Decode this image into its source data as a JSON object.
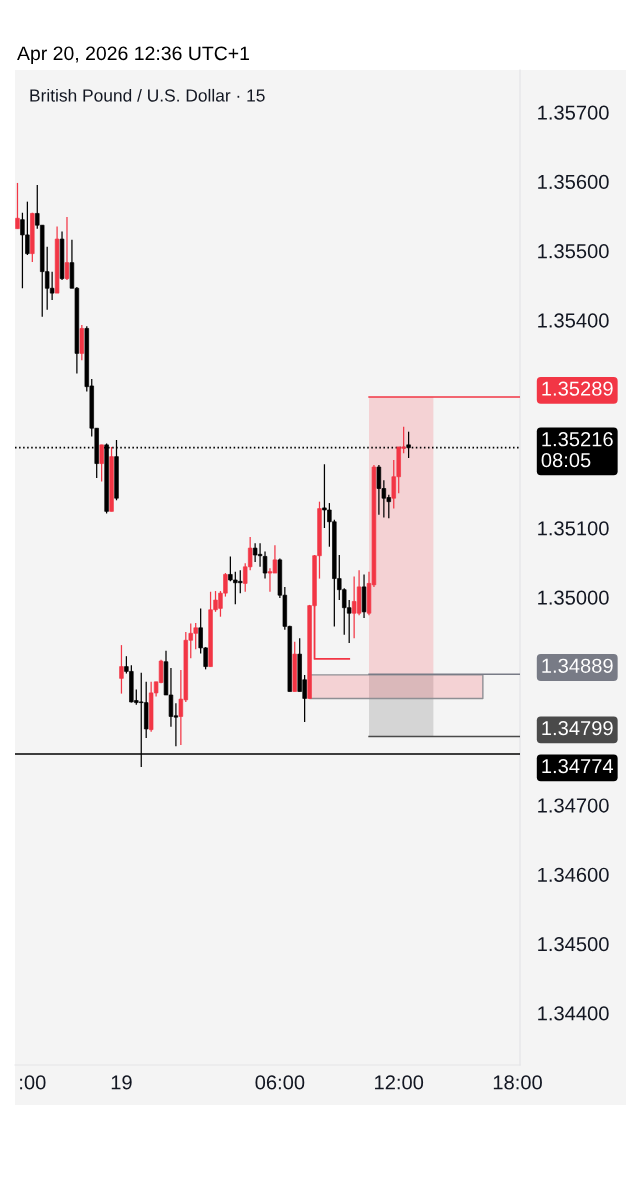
{
  "chart_data": {
    "type": "candlestick",
    "title": "British Pound / U.S. Dollar · 15",
    "annotations": [
      "Apr 20, 2026 12:36 UTC+1"
    ],
    "categories": [
      null,
      null,
      null,
      ":00",
      null,
      null,
      null,
      null,
      null,
      null,
      null,
      null,
      null,
      null,
      null,
      null,
      null,
      null,
      null,
      null,
      null,
      "19",
      null,
      null,
      null,
      null,
      null,
      null,
      null,
      null,
      null,
      null,
      null,
      null,
      null,
      null,
      null,
      null,
      null,
      null,
      null,
      null,
      null,
      null,
      null,
      null,
      null,
      null,
      null,
      null,
      null,
      null,
      null,
      "06:00",
      null,
      null,
      null,
      null,
      null,
      null,
      null,
      null,
      null,
      null,
      null,
      null,
      null,
      null,
      null,
      null,
      null,
      null,
      null,
      null,
      null,
      null,
      null,
      "12:00",
      null,
      null,
      null,
      null,
      null,
      null,
      null,
      null,
      null,
      null,
      null,
      null,
      null,
      null,
      null,
      null,
      null,
      null,
      null,
      null,
      null,
      null,
      null,
      "18:00"
    ],
    "ohlc": [
      [
        1.35532,
        1.35598,
        1.35532,
        1.35547
      ],
      [
        1.35545,
        1.35555,
        1.35446,
        1.35523
      ],
      [
        1.35523,
        1.35571,
        1.35494,
        1.35496
      ],
      [
        1.35496,
        1.35555,
        1.35484,
        1.35554
      ],
      [
        1.35554,
        1.35595,
        1.35532,
        1.35537
      ],
      [
        1.35537,
        1.35537,
        1.35405,
        1.3547
      ],
      [
        1.3547,
        1.35506,
        1.35415,
        1.35446
      ],
      [
        1.35446,
        1.3547,
        1.35429,
        1.35439
      ],
      [
        1.35439,
        1.35535,
        1.35439,
        1.35517
      ],
      [
        1.35517,
        1.35528,
        1.35458,
        1.3546
      ],
      [
        1.3546,
        1.35549,
        1.35458,
        1.35483
      ],
      [
        1.35483,
        1.35516,
        1.35446,
        1.35446
      ],
      [
        1.35446,
        1.35448,
        1.35323,
        1.35352
      ],
      [
        1.35352,
        1.35393,
        1.35342,
        1.35388
      ],
      [
        1.35388,
        1.35391,
        1.35297,
        1.35304
      ],
      [
        1.35305,
        1.35315,
        1.35232,
        1.35244
      ],
      [
        1.35244,
        1.35244,
        1.35172,
        1.35193
      ],
      [
        1.35193,
        1.3522,
        1.35167,
        1.3522
      ],
      [
        1.3522,
        1.35222,
        1.35121,
        1.35124
      ],
      [
        1.35124,
        1.35217,
        1.35124,
        1.35203
      ],
      [
        1.35203,
        1.35227,
        1.3514,
        1.35143
      ],
      [
        1.34883,
        1.34931,
        1.34861,
        1.349
      ],
      [
        1.349,
        1.34915,
        1.3489,
        1.34893
      ],
      [
        1.34893,
        1.34902,
        1.34848,
        1.34849
      ],
      [
        1.34851,
        1.34867,
        1.34845,
        1.34848
      ],
      [
        1.34849,
        1.34891,
        1.34755,
        1.34848
      ],
      [
        1.34848,
        1.34878,
        1.34797,
        1.3481
      ],
      [
        1.34809,
        1.34878,
        1.34806,
        1.34862
      ],
      [
        1.34862,
        1.34878,
        1.34857,
        1.34878
      ],
      [
        1.34877,
        1.3491,
        1.34876,
        1.34908
      ],
      [
        1.34907,
        1.34923,
        1.34859,
        1.34859
      ],
      [
        1.34859,
        1.34898,
        1.34813,
        1.34828
      ],
      [
        1.34829,
        1.34847,
        1.34785,
        1.34827
      ],
      [
        1.34828,
        1.34895,
        1.34787,
        1.34853
      ],
      [
        1.34852,
        1.3495,
        1.34849,
        1.34938
      ],
      [
        1.34938,
        1.34962,
        1.34912,
        1.34948
      ],
      [
        1.34948,
        1.34963,
        1.34925,
        1.34956
      ],
      [
        1.34956,
        1.34984,
        1.34919,
        1.34927
      ],
      [
        1.34927,
        1.34928,
        1.34896,
        1.349
      ],
      [
        1.349,
        1.35008,
        1.349,
        1.34982
      ],
      [
        1.34982,
        1.35009,
        1.34979,
        1.34996
      ],
      [
        1.34984,
        1.35009,
        1.34972,
        1.35006
      ],
      [
        1.35006,
        1.35035,
        1.35001,
        1.35033
      ],
      [
        1.35033,
        1.35059,
        1.35023,
        1.35025
      ],
      [
        1.35025,
        1.35037,
        1.3499,
        1.35021
      ],
      [
        1.35023,
        1.35039,
        1.35006,
        1.35021
      ],
      [
        1.3502,
        1.35049,
        1.35008,
        1.35044
      ],
      [
        1.35044,
        1.35087,
        1.35039,
        1.35071
      ],
      [
        1.35071,
        1.35078,
        1.35051,
        1.35061
      ],
      [
        1.35062,
        1.35078,
        1.35044,
        1.3506
      ],
      [
        1.35059,
        1.35066,
        1.35027,
        1.35035
      ],
      [
        1.35035,
        1.35042,
        1.35008,
        1.35037
      ],
      [
        1.35035,
        1.35075,
        1.35035,
        1.35054
      ],
      [
        1.35054,
        1.35056,
        1.34999,
        1.35003
      ],
      [
        1.35003,
        1.35015,
        1.34953,
        1.34958
      ],
      [
        1.34958,
        1.34959,
        1.34864,
        1.34864
      ],
      [
        1.34864,
        1.34936,
        1.34864,
        1.34918
      ],
      [
        1.34918,
        1.34941,
        1.34864,
        1.34864
      ],
      [
        1.34881,
        1.34888,
        1.3482,
        1.34854
      ],
      [
        1.34854,
        1.34989,
        1.34854,
        1.34988
      ],
      [
        1.34988,
        1.35061,
        1.34986,
        1.3506
      ],
      [
        1.3506,
        1.35138,
        1.35027,
        1.35128
      ],
      [
        1.35129,
        1.35192,
        1.351,
        1.35126
      ],
      [
        1.35126,
        1.35136,
        1.35073,
        1.35109
      ],
      [
        1.35109,
        1.35112,
        1.34958,
        1.35027
      ],
      [
        1.35027,
        1.35061,
        1.34996,
        1.35011
      ],
      [
        1.35011,
        1.35013,
        1.34946,
        1.34985
      ],
      [
        1.34985,
        1.34996,
        1.34934,
        1.34977
      ],
      [
        1.34977,
        1.3503,
        1.34941,
        1.34994
      ],
      [
        1.34977,
        1.35039,
        1.34974,
        1.35015
      ],
      [
        1.35015,
        1.35033,
        1.3497,
        1.34979
      ],
      [
        1.34977,
        1.35037,
        1.34974,
        1.3502
      ],
      [
        1.35018,
        1.35191,
        1.35015,
        1.35188
      ],
      [
        1.35188,
        1.35191,
        1.35119,
        1.35157
      ],
      [
        1.35157,
        1.35169,
        1.35115,
        1.35143
      ],
      [
        1.35144,
        1.35148,
        1.35114,
        1.35138
      ],
      [
        1.35143,
        1.35198,
        1.35128,
        1.35174
      ],
      [
        1.35174,
        1.35217,
        1.3515,
        1.35217
      ],
      [
        1.35215,
        1.35246,
        1.35208,
        1.35217
      ],
      [
        1.3522,
        1.35239,
        1.35201,
        1.35216
      ],
      null,
      null,
      null,
      null,
      null,
      null,
      null,
      null,
      null,
      null,
      null,
      null,
      null,
      null,
      null,
      null,
      null,
      null,
      null,
      null,
      null,
      null
    ],
    "colors": [
      "#f23645",
      "#000000",
      "#000000",
      "#f23645",
      "#000000",
      "#000000",
      "#000000",
      "#000000",
      "#f23645",
      "#000000",
      "#f23645",
      "#000000",
      "#000000",
      "#f23645",
      "#000000",
      "#000000",
      "#000000",
      "#f23645",
      "#000000",
      "#f23645",
      "#000000",
      "#f23645",
      "#000000",
      "#000000",
      "#000000",
      "#000000",
      "#000000",
      "#f23645",
      "#f23645",
      "#f23645",
      "#000000",
      "#000000",
      "#000000",
      "#f23645",
      "#f23645",
      "#f23645",
      "#f23645",
      "#000000",
      "#000000",
      "#f23645",
      "#f23645",
      "#f23645",
      "#f23645",
      "#000000",
      "#000000",
      "#000000",
      "#f23645",
      "#f23645",
      "#000000",
      "#000000",
      "#000000",
      "#f23645",
      "#f23645",
      "#000000",
      "#000000",
      "#000000",
      "#f23645",
      "#000000",
      "#000000",
      "#f23645",
      "#f23645",
      "#f23645",
      "#000000",
      "#000000",
      "#000000",
      "#000000",
      "#000000",
      "#000000",
      "#f23645",
      "#f23645",
      "#000000",
      "#f23645",
      "#f23645",
      "#000000",
      "#000000",
      "#000000",
      "#f23645",
      "#f23645",
      "#f23645",
      "#000000",
      null,
      null,
      null,
      null,
      null,
      null,
      null,
      null,
      null,
      null,
      null,
      null,
      null,
      null,
      null,
      null,
      null,
      null,
      null,
      null,
      null,
      null
    ],
    "series": [
      {
        "type": "step",
        "color": "#f23645",
        "values": [
          null,
          null,
          null,
          null,
          null,
          null,
          null,
          null,
          null,
          null,
          null,
          null,
          null,
          null,
          null,
          null,
          null,
          null,
          null,
          null,
          null,
          null,
          null,
          null,
          null,
          null,
          null,
          null,
          null,
          null,
          null,
          null,
          null,
          null,
          null,
          null,
          null,
          null,
          null,
          null,
          null,
          null,
          null,
          null,
          null,
          null,
          null,
          null,
          null,
          null,
          null,
          null,
          null,
          null,
          null,
          null,
          null,
          null,
          null,
          null,
          1.34987,
          1.34911,
          1.34911,
          1.34911,
          1.34911,
          1.34911,
          1.34911,
          1.34911,
          null,
          null,
          null,
          null,
          null,
          null,
          null,
          null,
          null,
          null,
          null,
          null,
          null,
          null,
          null,
          null,
          null,
          null,
          null,
          null,
          null,
          null,
          null,
          null,
          null,
          null,
          null,
          null,
          null,
          null,
          null,
          null,
          null,
          null
        ]
      },
      {
        "type": "line",
        "color": "#f23645",
        "values": [
          null,
          null,
          null,
          null,
          null,
          null,
          null,
          null,
          null,
          null,
          null,
          null,
          null,
          null,
          null,
          null,
          null,
          null,
          null,
          null,
          null,
          null,
          null,
          null,
          null,
          null,
          null,
          null,
          null,
          null,
          null,
          null,
          null,
          null,
          null,
          null,
          null,
          null,
          null,
          null,
          null,
          null,
          null,
          null,
          null,
          null,
          null,
          null,
          null,
          null,
          null,
          null,
          null,
          null,
          null,
          null,
          null,
          null,
          null,
          null,
          null,
          null,
          null,
          null,
          null,
          null,
          null,
          null,
          null,
          null,
          null,
          null,
          null,
          null,
          null,
          null,
          null,
          null,
          null,
          null,
          null,
          null,
          null,
          null,
          null,
          null,
          null,
          null,
          null,
          null,
          null,
          null,
          null,
          null,
          null,
          null,
          null,
          null,
          null,
          null,
          null,
          null
        ],
        "lower": [
          null,
          null,
          null,
          null,
          null,
          null,
          null,
          null,
          null,
          null,
          null,
          null,
          null,
          null,
          null,
          null,
          null,
          null,
          null,
          null,
          null,
          null,
          null,
          null,
          null,
          null,
          null,
          null,
          null,
          null,
          null,
          null,
          null,
          null,
          null,
          null,
          null,
          null,
          null,
          null,
          null,
          null,
          null,
          null,
          null,
          null,
          null,
          null,
          null,
          null,
          null,
          null,
          null,
          null,
          null,
          null,
          null,
          null,
          null,
          null,
          null,
          null,
          null,
          null,
          null,
          null,
          null,
          null,
          null,
          null,
          null,
          1.34889,
          1.34889,
          1.34889,
          1.34889,
          1.34889,
          1.34889,
          1.34889,
          1.34889,
          1.34889,
          1.34889,
          1.34889,
          1.34889,
          1.34889,
          1.34889,
          null,
          null,
          null,
          null,
          null,
          null,
          null,
          null,
          null,
          null,
          null,
          null,
          null,
          null,
          null,
          null,
          null
        ],
        "upper": [
          null,
          null,
          null,
          null,
          null,
          null,
          null,
          null,
          null,
          null,
          null,
          null,
          null,
          null,
          null,
          null,
          null,
          null,
          null,
          null,
          null,
          null,
          null,
          null,
          null,
          null,
          null,
          null,
          null,
          null,
          null,
          null,
          null,
          null,
          null,
          null,
          null,
          null,
          null,
          null,
          null,
          null,
          null,
          null,
          null,
          null,
          null,
          null,
          null,
          null,
          null,
          null,
          null,
          null,
          null,
          null,
          null,
          null,
          null,
          null,
          null,
          null,
          null,
          null,
          null,
          null,
          null,
          null,
          null,
          null,
          null,
          1.35289,
          1.35289,
          1.35289,
          1.35289,
          1.35289,
          1.35289,
          1.35289,
          1.35289,
          1.35289,
          1.35289,
          1.35289,
          1.35289,
          1.35289,
          1.35289,
          null,
          null,
          null,
          null,
          null,
          null,
          null,
          null,
          null,
          null,
          null,
          null,
          null,
          null,
          null,
          null,
          null
        ]
      },
      {
        "type": "line",
        "color": "#4a4a4a",
        "values": [
          null,
          null,
          null,
          null,
          null,
          null,
          null,
          null,
          null,
          null,
          null,
          null,
          null,
          null,
          null,
          null,
          null,
          null,
          null,
          null,
          null,
          null,
          null,
          null,
          null,
          null,
          null,
          null,
          null,
          null,
          null,
          null,
          null,
          null,
          null,
          null,
          null,
          null,
          null,
          null,
          null,
          null,
          null,
          null,
          null,
          null,
          null,
          null,
          null,
          null,
          null,
          null,
          null,
          null,
          null,
          null,
          null,
          null,
          null,
          null,
          null,
          null,
          null,
          null,
          null,
          null,
          null,
          null,
          null,
          null,
          null,
          null,
          null,
          null,
          null,
          null,
          null,
          null,
          null,
          null,
          null,
          null,
          null,
          null,
          null,
          null,
          null,
          null,
          null,
          null,
          null,
          null,
          null,
          null,
          null,
          null,
          null,
          null,
          null,
          null,
          null,
          null
        ],
        "lower": [
          null,
          null,
          null,
          null,
          null,
          null,
          null,
          null,
          null,
          null,
          null,
          null,
          null,
          null,
          null,
          null,
          null,
          null,
          null,
          null,
          null,
          null,
          null,
          null,
          null,
          null,
          null,
          null,
          null,
          null,
          null,
          null,
          null,
          null,
          null,
          null,
          null,
          null,
          null,
          null,
          null,
          null,
          null,
          null,
          null,
          null,
          null,
          null,
          null,
          null,
          null,
          null,
          null,
          null,
          null,
          null,
          null,
          null,
          null,
          null,
          null,
          null,
          null,
          null,
          null,
          null,
          null,
          null,
          null,
          null,
          null,
          1.34799,
          1.34799,
          1.34799,
          1.34799,
          1.34799,
          1.34799,
          1.34799,
          1.34799,
          1.34799,
          1.34799,
          1.34799,
          1.34799,
          1.34799,
          1.34799,
          null,
          null,
          null,
          null,
          null,
          null,
          null,
          null,
          null,
          null,
          null,
          null,
          null,
          null,
          null,
          null,
          null
        ],
        "upper": [
          null,
          null,
          null,
          null,
          null,
          null,
          null,
          null,
          null,
          null,
          null,
          null,
          null,
          null,
          null,
          null,
          null,
          null,
          null,
          null,
          null,
          null,
          null,
          null,
          null,
          null,
          null,
          null,
          null,
          null,
          null,
          null,
          null,
          null,
          null,
          null,
          null,
          null,
          null,
          null,
          null,
          null,
          null,
          null,
          null,
          null,
          null,
          null,
          null,
          null,
          null,
          null,
          null,
          null,
          null,
          null,
          null,
          null,
          null,
          null,
          null,
          null,
          null,
          null,
          null,
          null,
          null,
          null,
          null,
          null,
          null,
          1.34889,
          1.34889,
          1.34889,
          1.34889,
          1.34889,
          1.34889,
          1.34889,
          1.34889,
          1.34889,
          1.34889,
          1.34889,
          1.34889,
          1.34889,
          1.34889,
          null,
          null,
          null,
          null,
          null,
          null,
          null,
          null,
          null,
          null,
          null,
          null,
          null,
          null,
          null,
          null,
          null
        ]
      },
      {
        "type": "line",
        "color": "#f23645",
        "line_style": "solid",
        "values": [
          null,
          null,
          null,
          null,
          null,
          null,
          null,
          null,
          null,
          null,
          null,
          null,
          null,
          null,
          null,
          null,
          null,
          null,
          null,
          null,
          null,
          null,
          null,
          null,
          null,
          null,
          null,
          null,
          null,
          null,
          null,
          null,
          null,
          null,
          null,
          null,
          null,
          null,
          null,
          null,
          null,
          null,
          null,
          null,
          null,
          null,
          null,
          null,
          null,
          null,
          null,
          null,
          null,
          null,
          null,
          null,
          null,
          null,
          null,
          null,
          null,
          null,
          null,
          null,
          null,
          null,
          null,
          null,
          null,
          null,
          null,
          null,
          null,
          null,
          null,
          null,
          null,
          null,
          null,
          null,
          null,
          null,
          null,
          null,
          null,
          null,
          null,
          null,
          null,
          null,
          null,
          null,
          null,
          null,
          null,
          null,
          null,
          null,
          null,
          null,
          null,
          null
        ],
        "lower": [
          null,
          null,
          null,
          null,
          null,
          null,
          null,
          null,
          null,
          null,
          null,
          null,
          null,
          null,
          null,
          null,
          null,
          null,
          null,
          null,
          null,
          null,
          null,
          null,
          null,
          null,
          null,
          null,
          null,
          null,
          null,
          null,
          null,
          null,
          null,
          null,
          null,
          null,
          null,
          null,
          null,
          null,
          null,
          null,
          null,
          null,
          null,
          null,
          null,
          null,
          null,
          null,
          null,
          null,
          null,
          null,
          null,
          null,
          null,
          1.34854,
          1.34854,
          1.34854,
          1.34854,
          1.34854,
          1.34854,
          1.34854,
          1.34854,
          1.34854,
          1.34854,
          1.34854,
          1.34854,
          1.34854,
          1.34854,
          1.34854,
          1.34854,
          1.34854,
          1.34854,
          1.34854,
          1.34854,
          1.34854,
          1.34854,
          1.34854,
          1.34854,
          1.34854,
          1.34854,
          1.34854,
          1.34854,
          1.34854,
          1.34854,
          1.34854,
          1.34854,
          1.34854,
          1.34854,
          1.34854,
          1.34854,
          null,
          null,
          null,
          null,
          null,
          null,
          null
        ],
        "upper": [
          null,
          null,
          null,
          null,
          null,
          null,
          null,
          null,
          null,
          null,
          null,
          null,
          null,
          null,
          null,
          null,
          null,
          null,
          null,
          null,
          null,
          null,
          null,
          null,
          null,
          null,
          null,
          null,
          null,
          null,
          null,
          null,
          null,
          null,
          null,
          null,
          null,
          null,
          null,
          null,
          null,
          null,
          null,
          null,
          null,
          null,
          null,
          null,
          null,
          null,
          null,
          null,
          null,
          null,
          null,
          null,
          null,
          null,
          null,
          1.34888,
          1.34888,
          1.34888,
          1.34888,
          1.34888,
          1.34888,
          1.34888,
          1.34888,
          1.34888,
          1.34888,
          1.34888,
          1.34888,
          1.34888,
          1.34888,
          1.34888,
          1.34888,
          1.34888,
          1.34888,
          1.34888,
          1.34888,
          1.34888,
          1.34888,
          1.34888,
          1.34888,
          1.34888,
          1.34888,
          1.34888,
          1.34888,
          1.34888,
          1.34888,
          1.34888,
          1.34888,
          1.34888,
          1.34888,
          1.34888,
          1.34888,
          null,
          null,
          null,
          null,
          null,
          null,
          null
        ]
      }
    ],
    "ylim": [
      1.34325,
      1.35761
    ],
    "yticks": [
      {
        "value": 1.344,
        "label": "1.34400"
      },
      {
        "value": 1.345,
        "label": "1.34500"
      },
      {
        "value": 1.346,
        "label": "1.34600"
      },
      {
        "value": 1.347,
        "label": "1.34700"
      },
      {
        "value": 1.35,
        "label": "1.35000"
      },
      {
        "value": 1.351,
        "label": "1.35100"
      },
      {
        "value": 1.354,
        "label": "1.35400"
      },
      {
        "value": 1.355,
        "label": "1.35500"
      },
      {
        "value": 1.356,
        "label": "1.35600"
      },
      {
        "value": 1.357,
        "label": "1.35700"
      }
    ],
    "ref_lines": [
      {
        "axis": "y",
        "value": 1.35216,
        "label": "1.35216\n08:05",
        "color": "#000000",
        "line_style": "dotted"
      },
      {
        "axis": "y",
        "value": 1.34774,
        "label": "1.34774",
        "color": "#000000",
        "line_style": "solid"
      },
      {
        "axis": "y",
        "value": 1.35289,
        "label": "1.35289",
        "color": "#f23645",
        "line_style": "solid"
      },
      {
        "axis": "y",
        "value": 1.34889,
        "label": "1.34889",
        "color": "#787b86",
        "line_style": "solid"
      },
      {
        "axis": "y",
        "value": 1.34799,
        "label": "1.34799",
        "color": "#4a4a4a",
        "line_style": "solid"
      }
    ],
    "grid": false
  }
}
